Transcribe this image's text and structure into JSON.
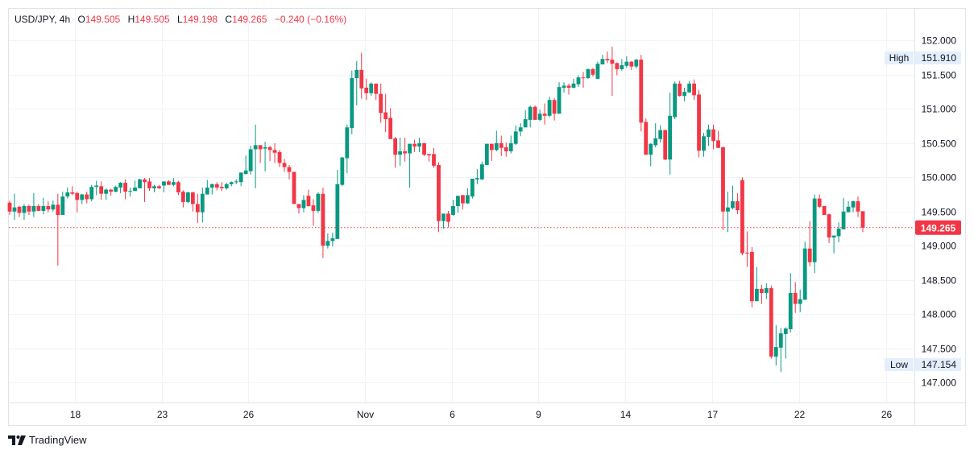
{
  "header": {
    "symbol": "USD/JPY, 4h",
    "open_label": "O",
    "open": "149.505",
    "high_label": "H",
    "high": "149.505",
    "low_label": "L",
    "low": "149.198",
    "close_label": "C",
    "close": "149.265",
    "change": "−0.240 (−0.16%)"
  },
  "branding": {
    "name": "TradingView"
  },
  "colors": {
    "up": "#089981",
    "down": "#F23645",
    "grid": "#f0f3fa",
    "axis_text": "#131722",
    "hl_bg": "#e3effd"
  },
  "chart_data": {
    "type": "candlestick",
    "title": "USD/JPY, 4h",
    "ylim": [
      146.85,
      152.05
    ],
    "y_ticks": [
      "147.000",
      "147.500",
      "148.000",
      "148.500",
      "149.000",
      "149.500",
      "150.000",
      "150.500",
      "151.000",
      "151.500",
      "152.000"
    ],
    "x_ticks": [
      {
        "label": "18",
        "index": 13.5
      },
      {
        "label": "23",
        "index": 31.6
      },
      {
        "label": "26",
        "index": 49.5
      },
      {
        "label": "Nov",
        "index": 73.7
      },
      {
        "label": "6",
        "index": 91.8
      },
      {
        "label": "9",
        "index": 109.6
      },
      {
        "label": "14",
        "index": 127.7
      },
      {
        "label": "17",
        "index": 145.8
      },
      {
        "label": "22",
        "index": 163.8
      },
      {
        "label": "26",
        "index": 181.9
      }
    ],
    "last_price": {
      "value": 149.265,
      "label": "149.265"
    },
    "high_marker": {
      "label": "High",
      "value": 151.91,
      "text": "151.910"
    },
    "low_marker": {
      "label": "Low",
      "value": 147.154,
      "text": "147.154"
    },
    "ohlc_fields": [
      "open",
      "high",
      "low",
      "close"
    ],
    "candles": [
      [
        149.63,
        149.66,
        149.45,
        149.5
      ],
      [
        149.5,
        149.76,
        149.38,
        149.56
      ],
      [
        149.57,
        149.58,
        149.42,
        149.48
      ],
      [
        149.48,
        149.61,
        149.38,
        149.58
      ],
      [
        149.58,
        149.6,
        149.45,
        149.5
      ],
      [
        149.5,
        149.77,
        149.42,
        149.58
      ],
      [
        149.58,
        149.61,
        149.51,
        149.51
      ],
      [
        149.51,
        149.7,
        149.46,
        149.58
      ],
      [
        149.58,
        149.65,
        149.49,
        149.53
      ],
      [
        149.53,
        149.66,
        149.5,
        149.6
      ],
      [
        149.6,
        149.76,
        148.71,
        149.45
      ],
      [
        149.45,
        149.79,
        149.45,
        149.72
      ],
      [
        149.72,
        149.85,
        149.69,
        149.78
      ],
      [
        149.78,
        149.87,
        149.74,
        149.76
      ],
      [
        149.77,
        149.79,
        149.49,
        149.67
      ],
      [
        149.67,
        149.76,
        149.61,
        149.75
      ],
      [
        149.75,
        149.79,
        149.62,
        149.68
      ],
      [
        149.68,
        149.89,
        149.65,
        149.86
      ],
      [
        149.86,
        149.95,
        149.74,
        149.88
      ],
      [
        149.87,
        149.94,
        149.67,
        149.76
      ],
      [
        149.76,
        149.84,
        149.67,
        149.82
      ],
      [
        149.82,
        149.83,
        149.73,
        149.79
      ],
      [
        149.79,
        149.88,
        149.78,
        149.86
      ],
      [
        149.85,
        149.93,
        149.77,
        149.92
      ],
      [
        149.92,
        149.97,
        149.68,
        149.79
      ],
      [
        149.8,
        149.85,
        149.72,
        149.8
      ],
      [
        149.8,
        149.95,
        149.8,
        149.85
      ],
      [
        149.84,
        149.98,
        149.84,
        149.97
      ],
      [
        149.97,
        149.99,
        149.64,
        149.93
      ],
      [
        149.94,
        149.99,
        149.8,
        149.84
      ],
      [
        149.84,
        149.89,
        149.78,
        149.87
      ],
      [
        149.87,
        149.89,
        149.83,
        149.84
      ],
      [
        149.88,
        149.94,
        149.78,
        149.94
      ],
      [
        149.94,
        149.96,
        149.89,
        149.89
      ],
      [
        149.89,
        149.99,
        149.87,
        149.93
      ],
      [
        149.93,
        149.95,
        149.74,
        149.78
      ],
      [
        149.79,
        149.81,
        149.56,
        149.64
      ],
      [
        149.64,
        149.79,
        149.62,
        149.78
      ],
      [
        149.78,
        149.79,
        149.5,
        149.61
      ],
      [
        149.61,
        149.76,
        149.33,
        149.49
      ],
      [
        149.49,
        149.85,
        149.34,
        149.76
      ],
      [
        149.75,
        149.96,
        149.75,
        149.85
      ],
      [
        149.85,
        149.91,
        149.75,
        149.9
      ],
      [
        149.9,
        149.93,
        149.81,
        149.85
      ],
      [
        149.86,
        149.93,
        149.8,
        149.84
      ],
      [
        149.84,
        149.92,
        149.82,
        149.9
      ],
      [
        149.9,
        149.94,
        149.87,
        149.93
      ],
      [
        149.93,
        149.97,
        149.9,
        149.94
      ],
      [
        149.93,
        150.07,
        149.87,
        150.07
      ],
      [
        150.05,
        150.32,
        150.04,
        150.1
      ],
      [
        150.09,
        150.46,
        150.04,
        150.41
      ],
      [
        150.41,
        150.77,
        149.84,
        150.47
      ],
      [
        150.47,
        150.47,
        150.21,
        150.41
      ],
      [
        150.42,
        150.52,
        150.09,
        150.44
      ],
      [
        150.44,
        150.46,
        150.24,
        150.4
      ],
      [
        150.4,
        150.5,
        150.21,
        150.36
      ],
      [
        150.37,
        150.4,
        150.15,
        150.21
      ],
      [
        150.21,
        150.27,
        150.08,
        150.15
      ],
      [
        150.15,
        150.18,
        149.97,
        150.08
      ],
      [
        150.08,
        150.08,
        149.61,
        149.61
      ],
      [
        149.61,
        149.61,
        149.47,
        149.55
      ],
      [
        149.55,
        149.74,
        149.49,
        149.67
      ],
      [
        149.73,
        149.82,
        149.57,
        149.58
      ],
      [
        149.59,
        149.68,
        149.29,
        149.51
      ],
      [
        149.51,
        149.78,
        149.48,
        149.76
      ],
      [
        149.76,
        149.85,
        148.82,
        149.0
      ],
      [
        149.0,
        149.18,
        148.96,
        149.07
      ],
      [
        149.07,
        149.19,
        148.99,
        149.11
      ],
      [
        149.1,
        150.11,
        149.1,
        149.9
      ],
      [
        149.89,
        150.3,
        149.87,
        150.29
      ],
      [
        150.28,
        150.77,
        150.06,
        150.73
      ],
      [
        150.72,
        151.56,
        150.63,
        151.45
      ],
      [
        151.45,
        151.7,
        151.05,
        151.57
      ],
      [
        151.57,
        151.82,
        151.15,
        151.3
      ],
      [
        151.31,
        151.44,
        151.13,
        151.23
      ],
      [
        151.23,
        151.39,
        151.19,
        151.37
      ],
      [
        151.37,
        151.37,
        151.13,
        151.22
      ],
      [
        151.22,
        151.37,
        150.8,
        150.94
      ],
      [
        150.95,
        151.22,
        150.66,
        150.85
      ],
      [
        150.87,
        151.01,
        150.56,
        150.56
      ],
      [
        150.57,
        150.59,
        150.14,
        150.33
      ],
      [
        150.33,
        150.58,
        150.17,
        150.38
      ],
      [
        150.38,
        150.58,
        150.23,
        150.35
      ],
      [
        150.35,
        150.49,
        149.85,
        150.49
      ],
      [
        150.49,
        150.55,
        150.37,
        150.45
      ],
      [
        150.45,
        150.58,
        150.37,
        150.5
      ],
      [
        150.5,
        150.5,
        150.31,
        150.33
      ],
      [
        150.34,
        150.34,
        150.23,
        150.32
      ],
      [
        150.34,
        150.43,
        150.14,
        150.17
      ],
      [
        150.18,
        150.22,
        149.2,
        149.36
      ],
      [
        149.36,
        149.47,
        149.25,
        149.47
      ],
      [
        149.47,
        149.51,
        149.27,
        149.35
      ],
      [
        149.45,
        149.67,
        149.44,
        149.58
      ],
      [
        149.58,
        149.73,
        149.48,
        149.73
      ],
      [
        149.74,
        149.74,
        149.53,
        149.62
      ],
      [
        149.62,
        149.84,
        149.61,
        149.74
      ],
      [
        149.72,
        149.98,
        149.69,
        149.98
      ],
      [
        149.97,
        150.12,
        149.9,
        149.99
      ],
      [
        149.97,
        150.23,
        149.96,
        150.19
      ],
      [
        150.18,
        150.49,
        150.18,
        150.49
      ],
      [
        150.49,
        150.49,
        150.24,
        150.4
      ],
      [
        150.4,
        150.68,
        150.38,
        150.5
      ],
      [
        150.5,
        150.61,
        150.31,
        150.43
      ],
      [
        150.44,
        150.51,
        150.3,
        150.38
      ],
      [
        150.38,
        150.61,
        150.35,
        150.5
      ],
      [
        150.49,
        150.76,
        150.47,
        150.67
      ],
      [
        150.67,
        150.79,
        150.6,
        150.73
      ],
      [
        150.73,
        150.98,
        150.73,
        150.85
      ],
      [
        150.84,
        151.05,
        150.73,
        151.03
      ],
      [
        151.03,
        151.05,
        150.84,
        150.84
      ],
      [
        150.84,
        150.99,
        150.82,
        150.93
      ],
      [
        150.93,
        151.08,
        150.77,
        150.9
      ],
      [
        150.9,
        151.18,
        150.88,
        151.13
      ],
      [
        151.13,
        151.16,
        150.83,
        150.93
      ],
      [
        150.93,
        151.39,
        150.93,
        151.32
      ],
      [
        151.31,
        151.39,
        151.24,
        151.34
      ],
      [
        151.34,
        151.37,
        151.21,
        151.31
      ],
      [
        151.31,
        151.44,
        151.3,
        151.37
      ],
      [
        151.36,
        151.49,
        151.32,
        151.46
      ],
      [
        151.46,
        151.54,
        151.31,
        151.45
      ],
      [
        151.45,
        151.59,
        151.44,
        151.58
      ],
      [
        151.58,
        151.6,
        151.47,
        151.5
      ],
      [
        151.44,
        151.69,
        151.44,
        151.66
      ],
      [
        151.65,
        151.79,
        151.65,
        151.73
      ],
      [
        151.73,
        151.84,
        151.67,
        151.71
      ],
      [
        151.72,
        151.91,
        151.19,
        151.66
      ],
      [
        151.67,
        151.68,
        151.49,
        151.58
      ],
      [
        151.58,
        151.73,
        151.56,
        151.64
      ],
      [
        151.63,
        151.77,
        151.6,
        151.69
      ],
      [
        151.69,
        151.7,
        151.57,
        151.62
      ],
      [
        151.62,
        151.73,
        151.59,
        151.72
      ],
      [
        151.72,
        151.79,
        150.67,
        150.8
      ],
      [
        150.81,
        150.86,
        150.33,
        150.33
      ],
      [
        150.33,
        150.5,
        150.16,
        150.49
      ],
      [
        150.47,
        150.79,
        150.44,
        150.57
      ],
      [
        150.56,
        150.76,
        150.51,
        150.69
      ],
      [
        150.69,
        150.7,
        150.25,
        150.26
      ],
      [
        150.26,
        151.24,
        150.04,
        150.9
      ],
      [
        150.88,
        151.4,
        150.85,
        151.37
      ],
      [
        151.37,
        151.41,
        151.18,
        151.19
      ],
      [
        151.19,
        151.31,
        151.11,
        151.25
      ],
      [
        151.24,
        151.41,
        151.24,
        151.37
      ],
      [
        151.37,
        151.43,
        151.13,
        151.2
      ],
      [
        151.21,
        151.28,
        150.29,
        150.39
      ],
      [
        150.39,
        150.65,
        150.3,
        150.6
      ],
      [
        150.59,
        150.77,
        150.46,
        150.7
      ],
      [
        150.7,
        150.77,
        150.41,
        150.53
      ],
      [
        150.54,
        150.68,
        150.43,
        150.43
      ],
      [
        150.44,
        150.45,
        149.23,
        149.5
      ],
      [
        149.5,
        149.79,
        149.2,
        149.56
      ],
      [
        149.55,
        149.88,
        149.53,
        149.65
      ],
      [
        149.65,
        149.77,
        149.46,
        149.52
      ],
      [
        149.96,
        150.0,
        148.86,
        148.89
      ],
      [
        148.9,
        149.21,
        148.69,
        148.89
      ],
      [
        148.91,
        148.98,
        148.1,
        148.19
      ],
      [
        148.19,
        148.69,
        148.19,
        148.37
      ],
      [
        148.37,
        148.43,
        148.15,
        148.31
      ],
      [
        148.31,
        148.45,
        148.22,
        148.38
      ],
      [
        148.38,
        148.42,
        147.35,
        147.38
      ],
      [
        147.38,
        147.84,
        147.25,
        147.52
      ],
      [
        147.51,
        147.8,
        147.154,
        147.72
      ],
      [
        147.71,
        147.81,
        147.35,
        147.79
      ],
      [
        147.78,
        148.6,
        147.73,
        148.31
      ],
      [
        148.31,
        148.47,
        148.02,
        148.15
      ],
      [
        148.15,
        148.36,
        148.03,
        148.22
      ],
      [
        148.21,
        149.06,
        148.21,
        148.96
      ],
      [
        148.96,
        149.36,
        148.7,
        148.76
      ],
      [
        148.76,
        149.75,
        148.6,
        149.69
      ],
      [
        149.69,
        149.75,
        149.55,
        149.57
      ],
      [
        149.58,
        149.58,
        149.45,
        149.45
      ],
      [
        149.46,
        149.47,
        149.04,
        149.12
      ],
      [
        149.12,
        149.15,
        148.89,
        149.15
      ],
      [
        149.14,
        149.34,
        149.05,
        149.25
      ],
      [
        149.24,
        149.7,
        149.24,
        149.5
      ],
      [
        149.49,
        149.65,
        149.49,
        149.57
      ],
      [
        149.56,
        149.66,
        149.49,
        149.65
      ],
      [
        149.65,
        149.72,
        149.42,
        149.5
      ],
      [
        149.505,
        149.505,
        149.198,
        149.265
      ]
    ]
  }
}
